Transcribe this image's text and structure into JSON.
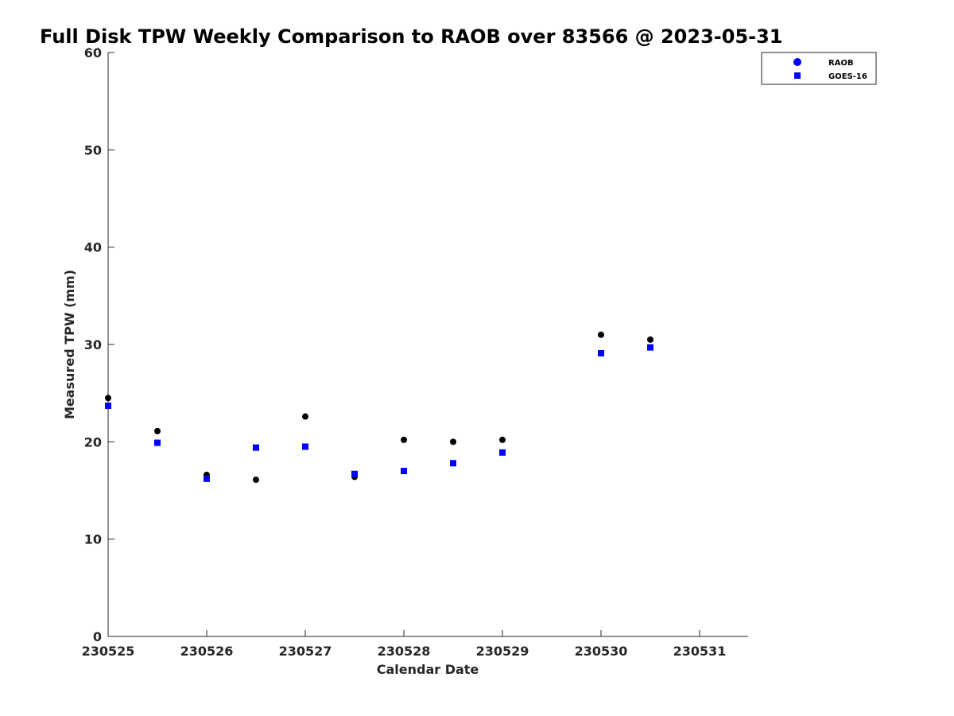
{
  "chart_data": {
    "type": "scatter",
    "title": "Full Disk TPW Weekly Comparison to RAOB over 83566 @ 2023-05-31",
    "xlabel": "Calendar Date",
    "ylabel": "Measured TPW (mm)",
    "xlim": [
      0,
      6.5
    ],
    "ylim": [
      0,
      60
    ],
    "xticks": [
      {
        "value": 0,
        "label": "230525"
      },
      {
        "value": 1,
        "label": "230526"
      },
      {
        "value": 2,
        "label": "230527"
      },
      {
        "value": 3,
        "label": "230528"
      },
      {
        "value": 4,
        "label": "230529"
      },
      {
        "value": 5,
        "label": "230530"
      },
      {
        "value": 6,
        "label": "230531"
      }
    ],
    "yticks": [
      {
        "value": 0,
        "label": "0"
      },
      {
        "value": 10,
        "label": "10"
      },
      {
        "value": 20,
        "label": "20"
      },
      {
        "value": 30,
        "label": "30"
      },
      {
        "value": 40,
        "label": "40"
      },
      {
        "value": 50,
        "label": "50"
      },
      {
        "value": 60,
        "label": "60"
      }
    ],
    "grid": false,
    "legend_position": "top-right",
    "series": [
      {
        "name": "RAOB",
        "marker": "circle",
        "color": "#000000",
        "legend_color": "#0000ff",
        "x": [
          0,
          0.5,
          1,
          1.5,
          2,
          2.5,
          3,
          3.5,
          4,
          5,
          5.5
        ],
        "y": [
          24.5,
          21.1,
          16.6,
          16.1,
          22.6,
          16.4,
          20.2,
          20.0,
          20.2,
          31.0,
          30.5
        ]
      },
      {
        "name": "GOES-16",
        "marker": "square",
        "color": "#0000ff",
        "legend_color": "#0000ff",
        "x": [
          0,
          0.5,
          1,
          1.5,
          2,
          2.5,
          3,
          3.5,
          4,
          5,
          5.5
        ],
        "y": [
          23.7,
          19.9,
          16.2,
          19.4,
          19.5,
          16.7,
          17.0,
          17.8,
          18.9,
          29.1,
          29.7
        ]
      }
    ]
  }
}
